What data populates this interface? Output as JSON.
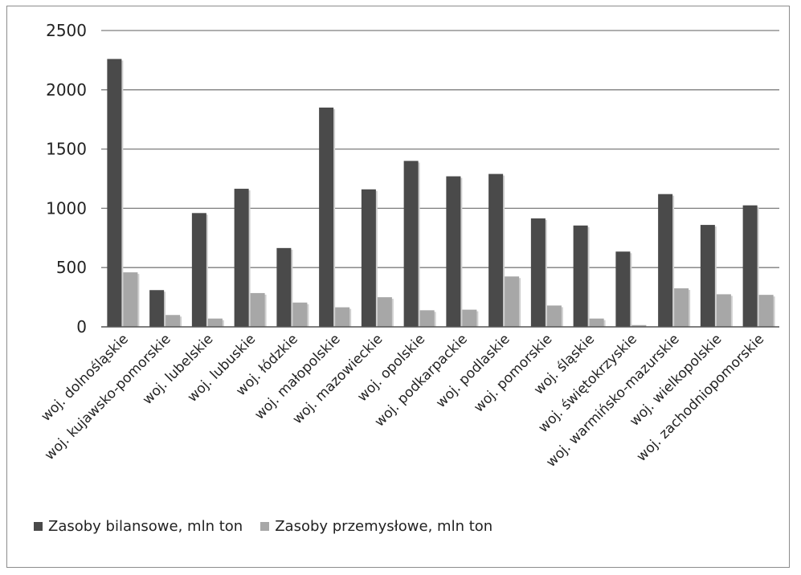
{
  "colors": {
    "series_dark": "#4a4a4a",
    "series_light": "#a7a7a7",
    "grid": "#7d7d7d"
  },
  "chart_data": {
    "type": "bar",
    "title": "",
    "xlabel": "",
    "ylabel": "",
    "ylim": [
      0,
      2500
    ],
    "yticks": [
      0,
      500,
      1000,
      1500,
      2000,
      2500
    ],
    "grid": true,
    "legend_position": "bottom-left",
    "categories": [
      "woj. dolnośląskie",
      "woj. kujawsko-pomorskie",
      "woj. lubelskie",
      "woj. lubuskie",
      "woj. łódzkie",
      "woj. małopolskie",
      "woj. mazowieckie",
      "woj. opolskie",
      "woj. podkarpackie",
      "woj. podlaskie",
      "woj. pomorskie",
      "woj. śląskie",
      "woj. świętokrzyskie",
      "woj. warmińsko-mazurskie",
      "woj. wielkopolskie",
      "woj. zachodniopomorskie"
    ],
    "series": [
      {
        "name": "Zasoby bilansowe, mln ton",
        "color": "#4a4a4a",
        "values": [
          2260,
          310,
          960,
          1165,
          665,
          1850,
          1160,
          1400,
          1270,
          1290,
          915,
          855,
          635,
          1120,
          860,
          1025
        ]
      },
      {
        "name": "Zasoby przemysłowe, mln ton",
        "color": "#a7a7a7",
        "values": [
          460,
          100,
          70,
          285,
          205,
          165,
          250,
          140,
          145,
          425,
          180,
          70,
          15,
          325,
          275,
          270
        ]
      }
    ]
  }
}
